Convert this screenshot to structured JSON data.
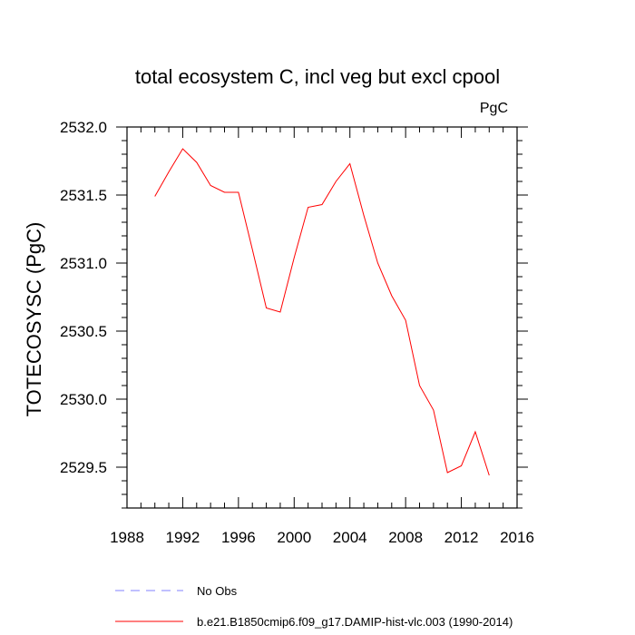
{
  "chart_data": {
    "type": "line",
    "title": "total ecosystem C, incl veg but excl cpool",
    "units_label": "PgC",
    "ylabel": "TOTECOSYSC  (PgC)",
    "xlabel": "",
    "xlim": [
      1988,
      2016
    ],
    "ylim": [
      2529.2,
      2532.0
    ],
    "xticks": [
      1988,
      1992,
      1996,
      2000,
      2004,
      2008,
      2012,
      2016
    ],
    "xtick_labels": [
      "1988",
      "1992",
      "1996",
      "2000",
      "2004",
      "2008",
      "2012",
      "2016"
    ],
    "yticks": [
      2529.5,
      2530.0,
      2530.5,
      2531.0,
      2531.5,
      2532.0
    ],
    "ytick_labels": [
      "2529.5",
      "2530.0",
      "2530.5",
      "2531.0",
      "2531.5",
      "2532.0"
    ],
    "grid": false,
    "series": [
      {
        "name": "b.e21.B1850cmip6.f09_g17.DAMIP-hist-vlc.003 (1990-2014)",
        "color": "#ff0000",
        "style": "solid",
        "x": [
          1990,
          1991,
          1992,
          1993,
          1994,
          1995,
          1996,
          1997,
          1998,
          1999,
          2000,
          2001,
          2002,
          2003,
          2004,
          2005,
          2006,
          2007,
          2008,
          2009,
          2010,
          2011,
          2012,
          2013,
          2014
        ],
        "y": [
          2531.49,
          2531.67,
          2531.84,
          2531.74,
          2531.57,
          2531.52,
          2531.52,
          2531.1,
          2530.67,
          2530.64,
          2531.04,
          2531.41,
          2531.43,
          2531.6,
          2531.73,
          2531.35,
          2531.0,
          2530.76,
          2530.58,
          2530.1,
          2529.92,
          2529.46,
          2529.51,
          2529.76,
          2529.44
        ]
      }
    ],
    "legend": [
      {
        "label": "No Obs",
        "color": "#8080ff",
        "style": "dashed"
      },
      {
        "label": "b.e21.B1850cmip6.f09_g17.DAMIP-hist-vlc.003 (1990-2014)",
        "color": "#ff0000",
        "style": "solid"
      }
    ],
    "legend_position": "bottom"
  }
}
